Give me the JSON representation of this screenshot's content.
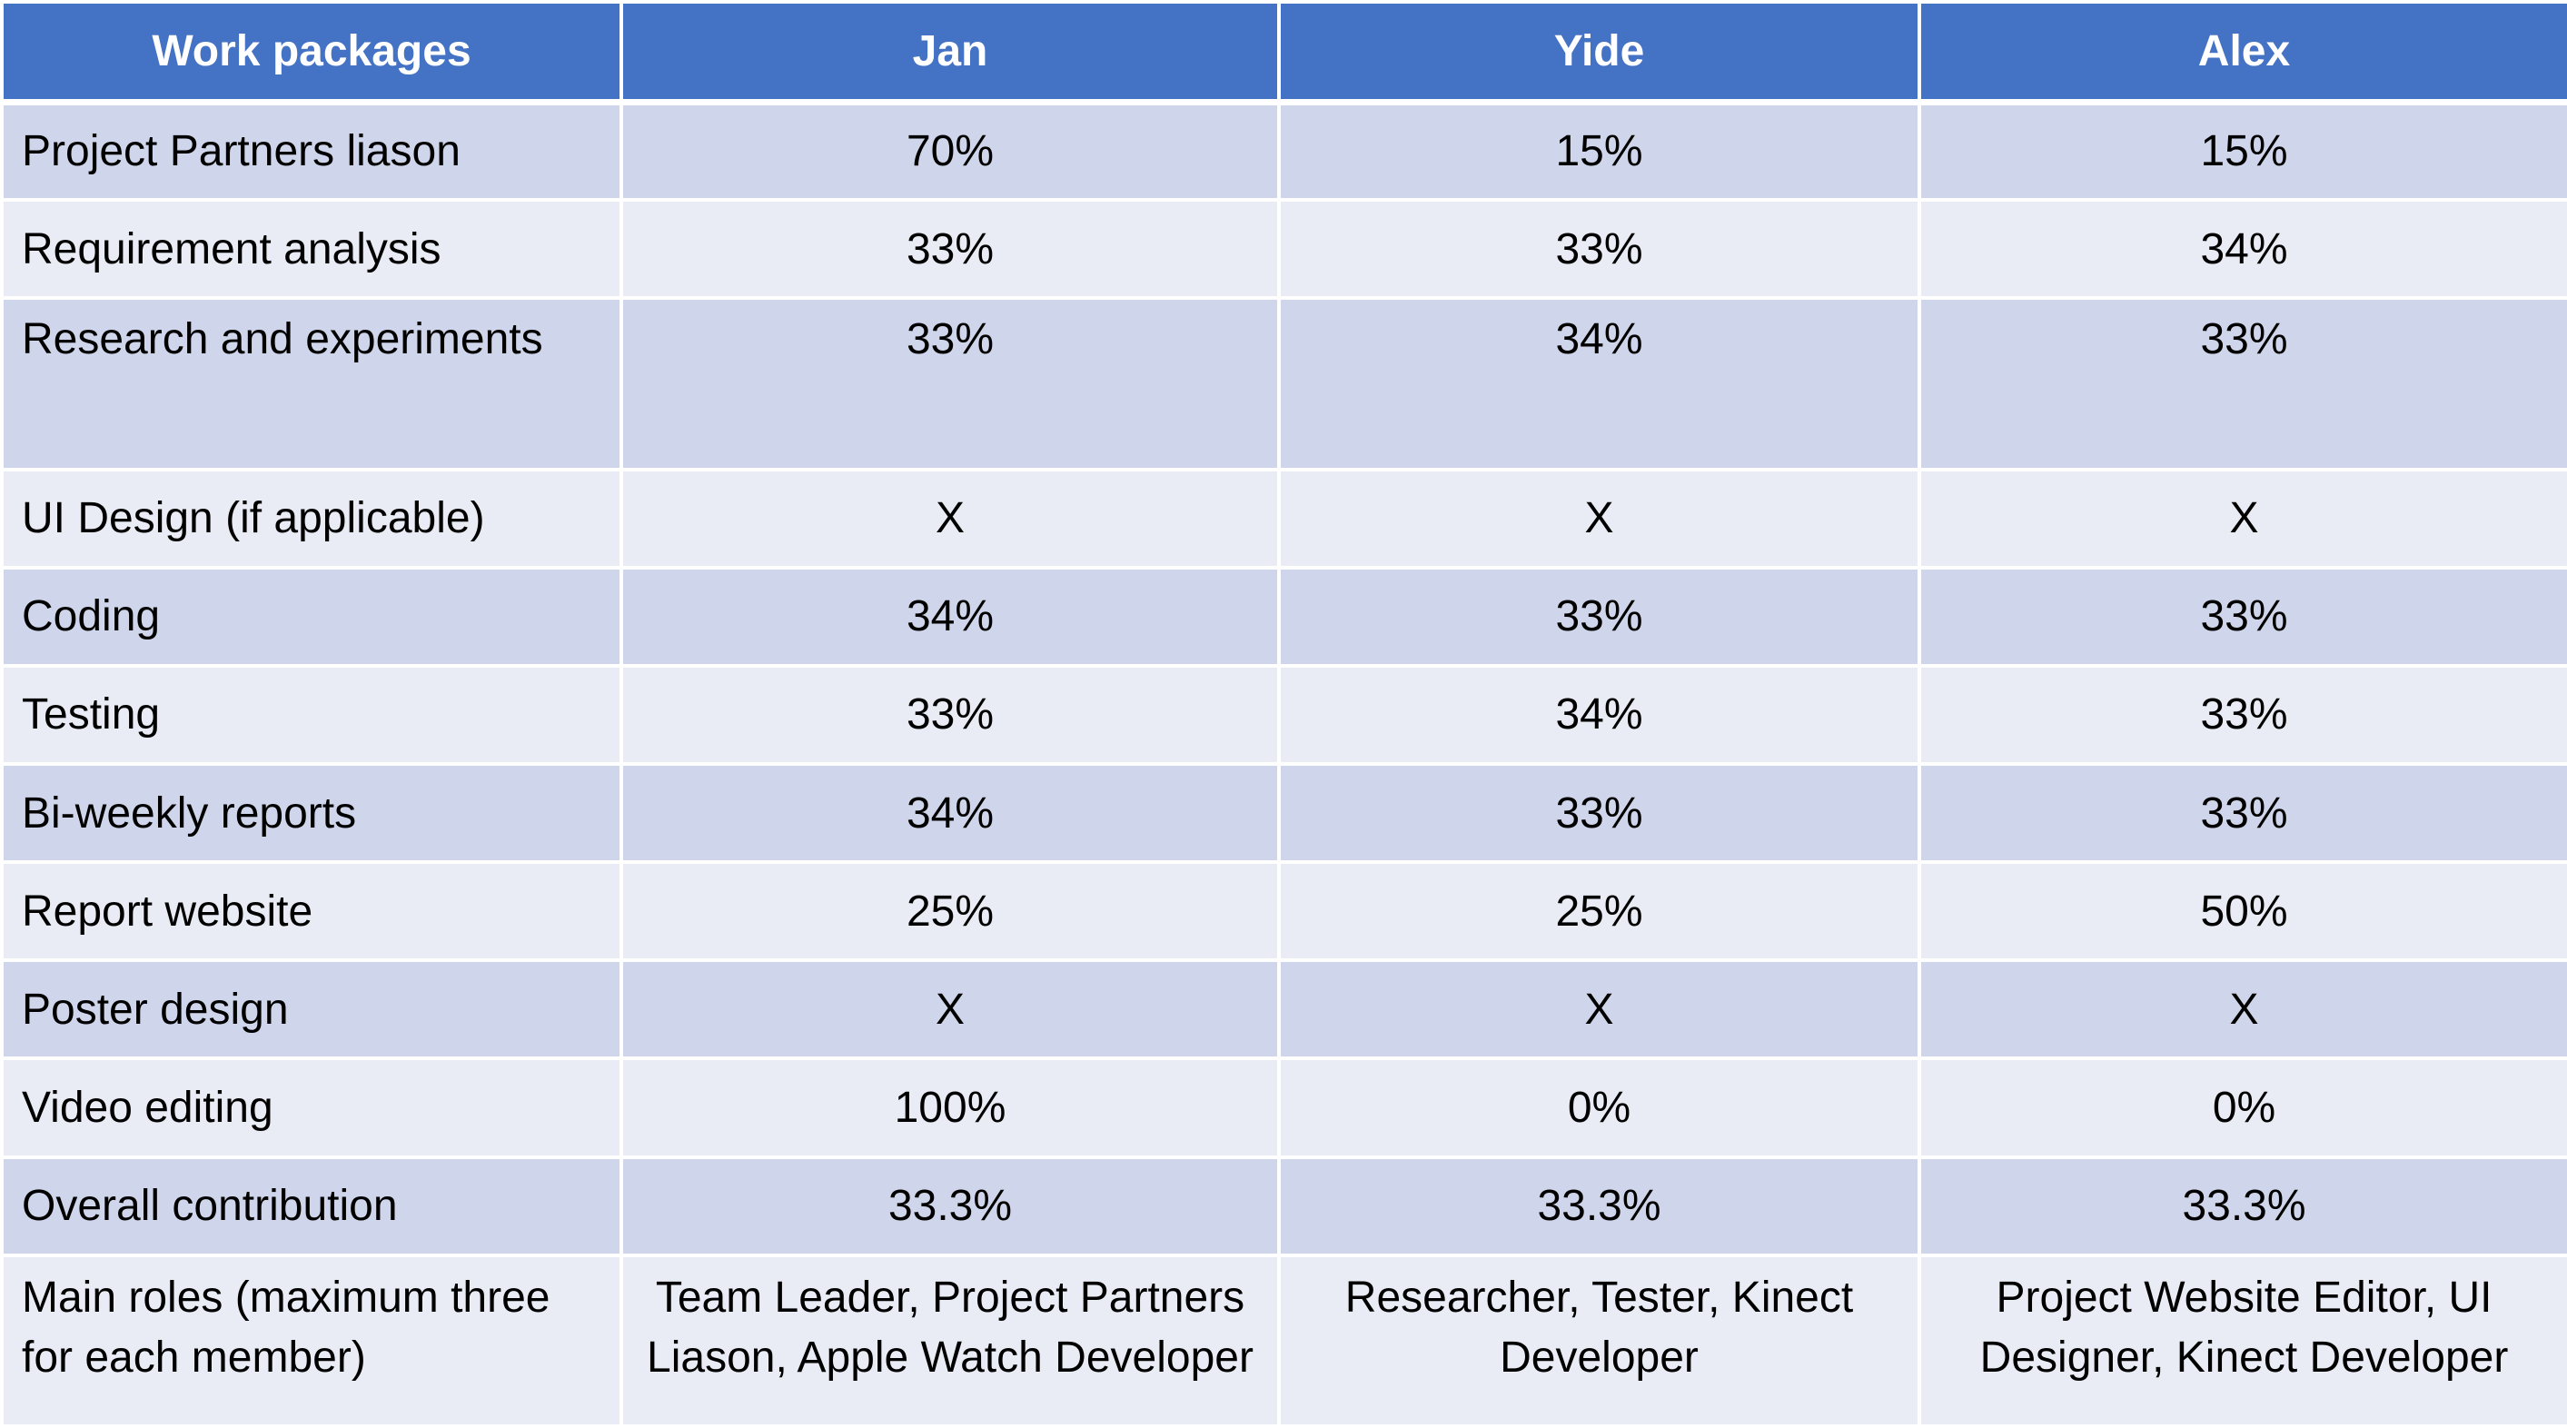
{
  "header": [
    "Work packages",
    "Jan",
    "Yide",
    "Alex"
  ],
  "rows": [
    [
      "Project Partners liason",
      "70%",
      "15%",
      "15%"
    ],
    [
      "Requirement analysis",
      "33%",
      "33%",
      "34%"
    ],
    [
      "Research and experiments",
      "33%",
      "34%",
      "33%"
    ],
    [
      "UI Design (if applicable)",
      "X",
      "X",
      "X"
    ],
    [
      "Coding",
      "34%",
      "33%",
      "33%"
    ],
    [
      "Testing",
      "33%",
      "34%",
      "33%"
    ],
    [
      "Bi-weekly reports",
      "34%",
      "33%",
      "33%"
    ],
    [
      "Report website",
      "25%",
      "25%",
      "50%"
    ],
    [
      "Poster design",
      "X",
      "X",
      "X"
    ],
    [
      "Video editing",
      "100%",
      "0%",
      "0%"
    ],
    [
      "Overall contribution",
      "33.3%",
      "33.3%",
      "33.3%"
    ],
    [
      "Main roles (maximum three for each member)",
      "Team Leader, Project Partners Liason, Apple Watch Developer",
      "Researcher, Tester, Kinect Developer",
      "Project Website Editor, UI Designer, Kinect Developer"
    ]
  ],
  "colors": {
    "header_bg": "#4472c4",
    "header_text": "#ffffff",
    "row_dark": "#cfd5ea",
    "row_light": "#e9ebf5"
  }
}
